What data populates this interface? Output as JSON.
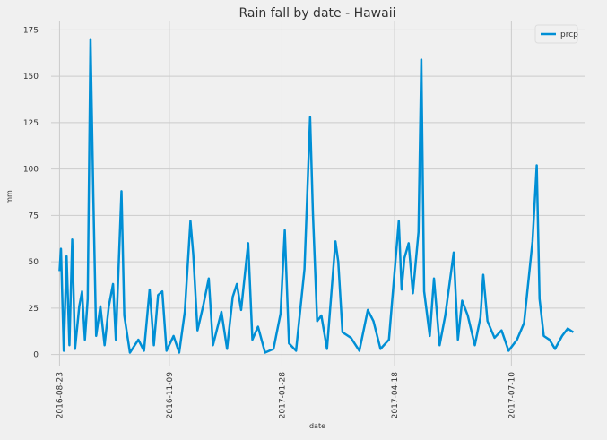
{
  "chart_data": {
    "type": "line",
    "title": "Rain fall by date - Hawaii",
    "xlabel": "date",
    "ylabel": "mm",
    "x": [
      "2016-08-23",
      "2016-08-24",
      "2016-08-26",
      "2016-08-28",
      "2016-08-30",
      "2016-09-01",
      "2016-09-03",
      "2016-09-06",
      "2016-09-08",
      "2016-09-10",
      "2016-09-12",
      "2016-09-14",
      "2016-09-16",
      "2016-09-18",
      "2016-09-21",
      "2016-09-24",
      "2016-09-27",
      "2016-09-30",
      "2016-10-02",
      "2016-10-06",
      "2016-10-08",
      "2016-10-12",
      "2016-10-18",
      "2016-10-22",
      "2016-10-26",
      "2016-10-29",
      "2016-11-01",
      "2016-11-04",
      "2016-11-07",
      "2016-11-12",
      "2016-11-16",
      "2016-11-20",
      "2016-11-24",
      "2016-11-26",
      "2016-11-29",
      "2016-12-03",
      "2016-12-07",
      "2016-12-10",
      "2016-12-16",
      "2016-12-20",
      "2016-12-24",
      "2016-12-27",
      "2016-12-30",
      "2017-01-04",
      "2017-01-07",
      "2017-01-11",
      "2017-01-16",
      "2017-01-22",
      "2017-01-27",
      "2017-01-30",
      "2017-02-02",
      "2017-02-07",
      "2017-02-13",
      "2017-02-17",
      "2017-02-19",
      "2017-02-22",
      "2017-02-25",
      "2017-03-01",
      "2017-03-07",
      "2017-03-09",
      "2017-03-12",
      "2017-03-18",
      "2017-03-24",
      "2017-03-30",
      "2017-04-03",
      "2017-04-08",
      "2017-04-14",
      "2017-04-21",
      "2017-04-23",
      "2017-04-25",
      "2017-04-28",
      "2017-05-01",
      "2017-05-05",
      "2017-05-07",
      "2017-05-09",
      "2017-05-13",
      "2017-05-16",
      "2017-05-20",
      "2017-05-24",
      "2017-05-30",
      "2017-06-02",
      "2017-06-05",
      "2017-06-09",
      "2017-06-14",
      "2017-06-18",
      "2017-06-20",
      "2017-06-23",
      "2017-06-28",
      "2017-07-03",
      "2017-07-08",
      "2017-07-14",
      "2017-07-19",
      "2017-07-25",
      "2017-07-28",
      "2017-07-30",
      "2017-08-02",
      "2017-08-06",
      "2017-08-10",
      "2017-08-15",
      "2017-08-19",
      "2017-08-23"
    ],
    "series": [
      {
        "name": "prcp",
        "color": "#008fd5",
        "values": [
          45,
          57,
          2,
          53,
          5,
          62,
          3,
          26,
          34,
          8,
          30,
          170,
          85,
          10,
          26,
          5,
          26,
          38,
          8,
          88,
          21,
          1,
          8,
          2,
          35,
          5,
          32,
          34,
          2,
          10,
          1,
          23,
          72,
          54,
          13,
          26,
          41,
          5,
          23,
          3,
          31,
          38,
          24,
          60,
          8,
          15,
          1,
          3,
          22,
          67,
          6,
          2,
          46,
          128,
          76,
          18,
          21,
          3,
          61,
          50,
          12,
          9,
          2,
          24,
          18,
          3,
          8,
          72,
          35,
          52,
          60,
          33,
          66,
          159,
          34,
          10,
          41,
          5,
          21,
          55,
          8,
          29,
          21,
          5,
          20,
          43,
          18,
          9,
          13,
          2,
          8,
          17,
          61,
          102,
          30,
          10,
          8,
          3,
          10,
          14,
          12
        ]
      }
    ],
    "xlim": [
      "2016-08-17",
      "2017-08-31"
    ],
    "xticks": [
      "2016-08-23",
      "2016-11-09",
      "2017-01-28",
      "2017-04-18",
      "2017-07-10"
    ],
    "ylim": [
      -6,
      180
    ],
    "yticks": [
      0,
      25,
      50,
      75,
      100,
      125,
      150,
      175
    ],
    "grid": true,
    "legend": "upper right"
  }
}
